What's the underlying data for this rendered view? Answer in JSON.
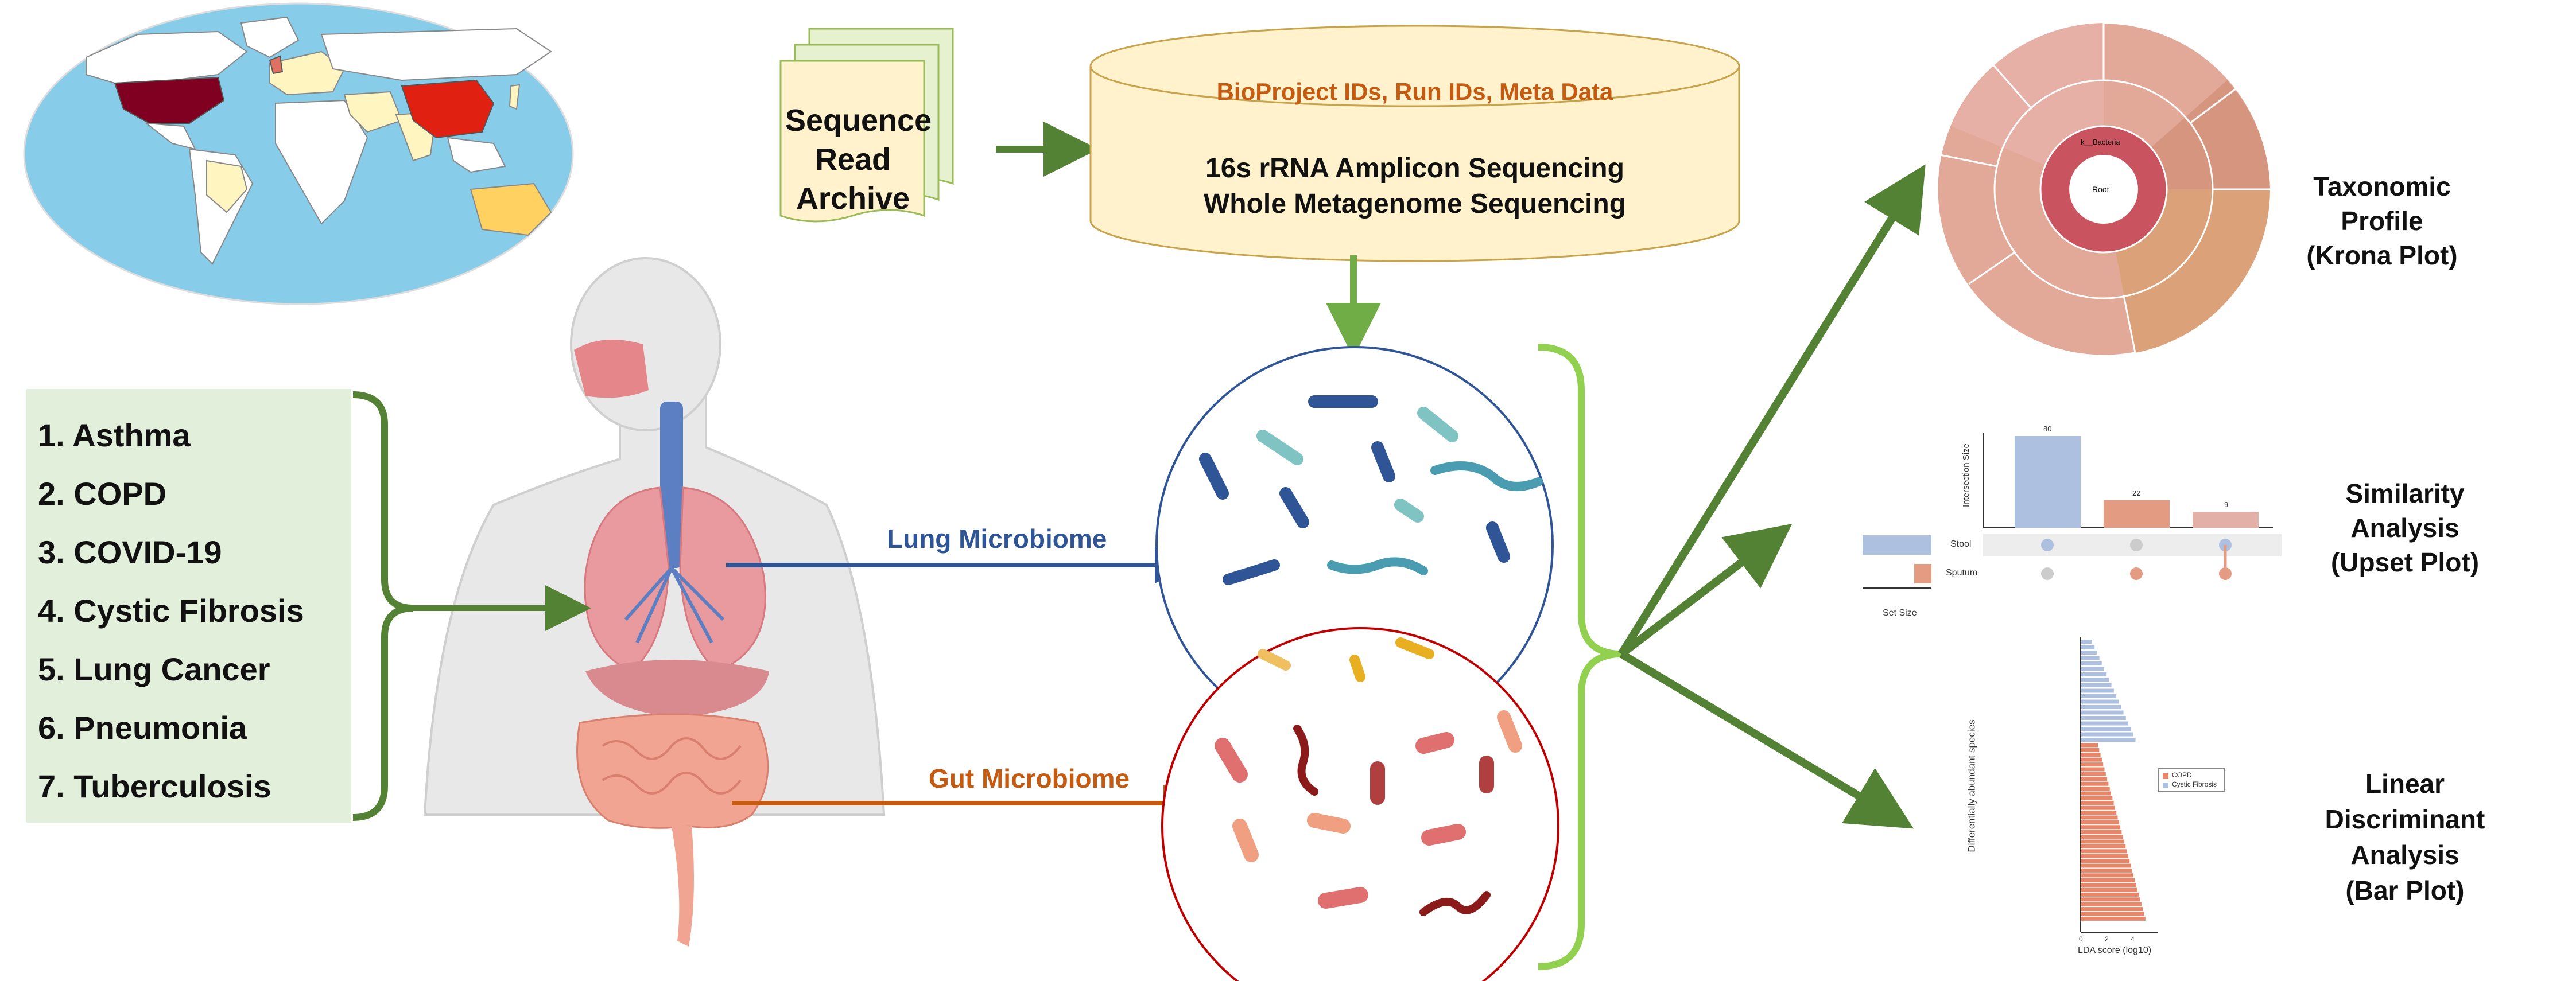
{
  "sra": {
    "line1": "Sequence",
    "line2": "Read",
    "line3": "Archive"
  },
  "database": {
    "header": "BioProject IDs, Run IDs, Meta Data",
    "line1": "16s rRNA Amplicon Sequencing",
    "line2": "Whole Metagenome Sequencing"
  },
  "diseases": [
    "1. Asthma",
    "2. COPD",
    "3. COVID-19",
    "4. Cystic Fibrosis",
    "5. Lung Cancer",
    "6. Pneumonia",
    "7. Tuberculosis"
  ],
  "microbiomes": {
    "lung": "Lung Microbiome",
    "gut": "Gut Microbiome"
  },
  "outputs": {
    "krona": {
      "line1": "Taxonomic Profile",
      "line2": "(Krona Plot)"
    },
    "upset": {
      "line1": "Similarity Analysis",
      "line2": "(Upset Plot)"
    },
    "lda": {
      "line1": "Linear Discriminant",
      "line2": "Analysis",
      "line3": "(Bar Plot)"
    }
  },
  "krona_plot": {
    "center": "Root",
    "ring1": "k__Bacteria"
  },
  "upset_plot": {
    "ylabel": "Intersection Size",
    "sets": [
      "Stool",
      "Sputum"
    ],
    "set_size_label": "Set Size",
    "bar_values": [
      80,
      22,
      9
    ],
    "bar_labels": [
      "80",
      "22",
      "9"
    ]
  },
  "lda_plot": {
    "ylabel": "Differentially abundant species",
    "xlabel": "LDA score (log10)",
    "legend": [
      "COPD",
      "Cystic Fibrosis"
    ],
    "xticks": [
      "0",
      "2",
      "4"
    ]
  },
  "colors": {
    "green_dark": "#548235",
    "green_light": "#92d050",
    "lung_blue": "#2f5597",
    "gut_orange": "#c55a11",
    "db_fill": "#fff2cc",
    "list_fill": "#e2efda",
    "gut_circle": "#c00000",
    "lung_circle": "#2f5597"
  }
}
